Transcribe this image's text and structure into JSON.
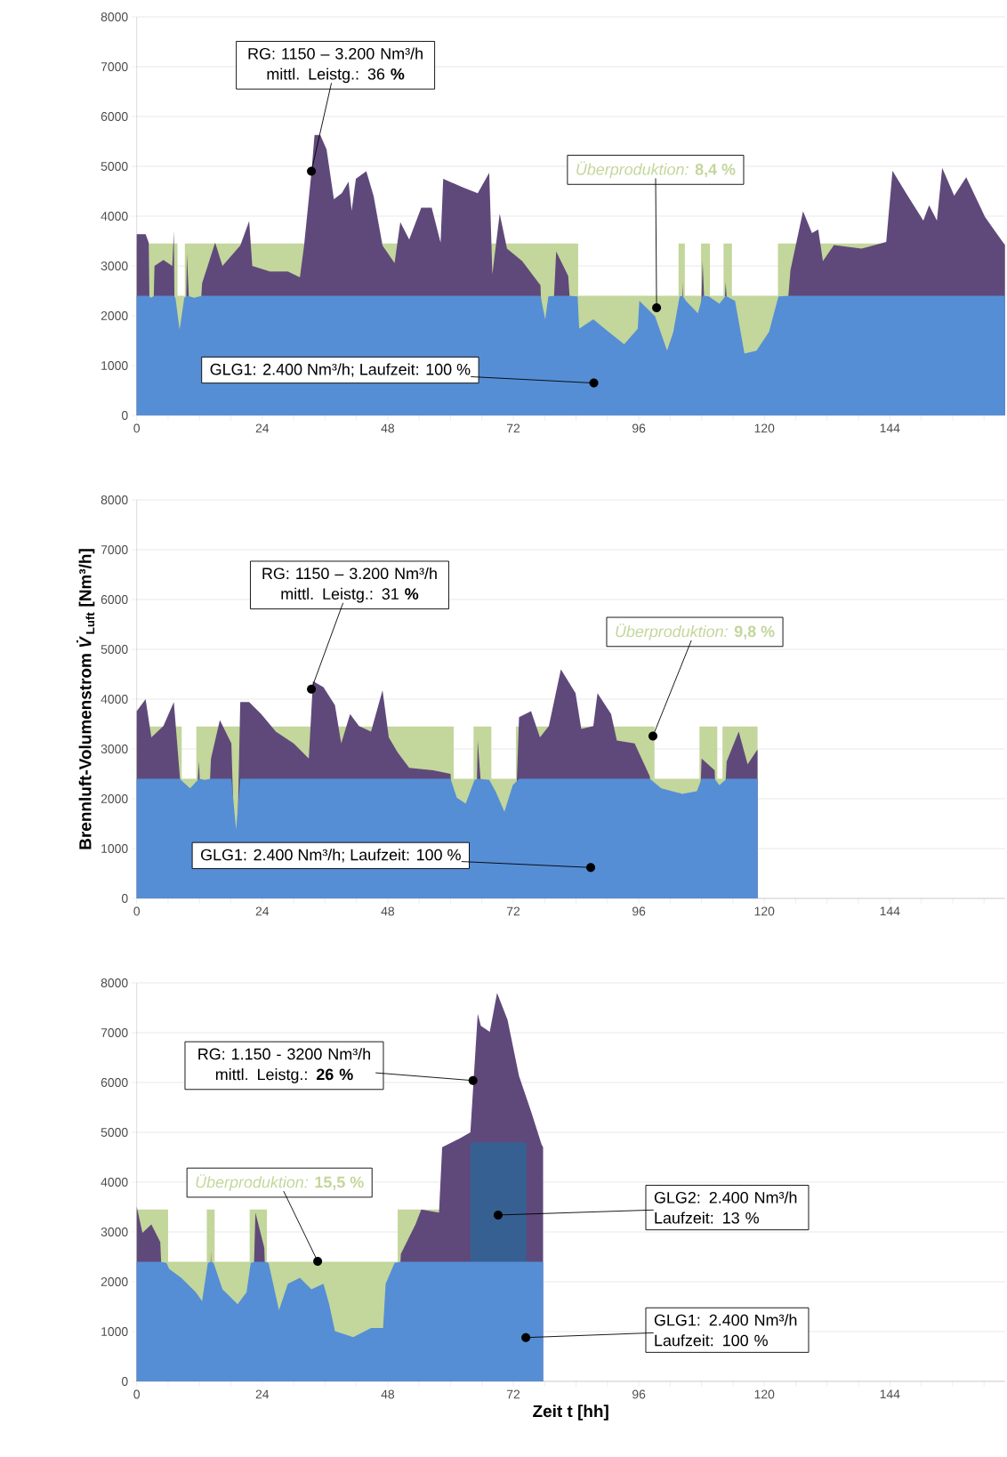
{
  "chart_data": [
    {
      "type": "area",
      "xlim": [
        0,
        166
      ],
      "ylim": [
        0,
        8000
      ],
      "grid": "y",
      "xticks": [
        0,
        {
          "value": 6,
          "label": null
        },
        {
          "value": 12,
          "label": null
        },
        {
          "value": 18,
          "label": null
        },
        24,
        {
          "value": 30,
          "label": null
        },
        {
          "value": 36,
          "label": null
        },
        {
          "value": 42,
          "label": null
        },
        48,
        {
          "value": 54,
          "label": null
        },
        {
          "value": 60,
          "label": null
        },
        {
          "value": 66,
          "label": null
        },
        72,
        {
          "value": 78,
          "label": null
        },
        {
          "value": 84,
          "label": null
        },
        {
          "value": 90,
          "label": null
        },
        96,
        {
          "value": 102,
          "label": null
        },
        {
          "value": 108,
          "label": null
        },
        {
          "value": 114,
          "label": null
        },
        120,
        {
          "value": 126,
          "label": null
        },
        {
          "value": 132,
          "label": null
        },
        {
          "value": 138,
          "label": null
        },
        144,
        {
          "value": 150,
          "label": null
        },
        {
          "value": 156,
          "label": null
        },
        {
          "value": 162,
          "label": null
        }
      ],
      "yticks": [
        0,
        1000,
        2000,
        3000,
        4000,
        5000,
        6000,
        7000,
        8000
      ],
      "series": [
        {
          "color": "#c3d69b",
          "x": [
            0,
            7.8,
            7.8,
            9.2,
            9.2,
            84.4,
            84.4,
            103.6,
            103.6,
            104.8,
            104.8,
            107.9,
            107.9,
            109.6,
            109.6,
            112.2,
            112.2,
            113.8,
            113.8,
            122.6,
            122.6,
            166
          ],
          "values": [
            3450,
            3450,
            2400,
            2400,
            3450,
            3450,
            2400,
            2400,
            3450,
            3450,
            2400,
            2400,
            3450,
            3450,
            2400,
            2400,
            3450,
            3450,
            2400,
            2400,
            3450,
            3450
          ]
        },
        {
          "color": "#5f497a",
          "x": [
            0,
            1.7,
            2.3,
            2.7,
            3.4,
            5.1,
            6.8,
            7.1,
            7.4,
            8.2,
            9.1,
            9.6,
            11.0,
            12.5,
            15.0,
            16.4,
            19.8,
            21.5,
            22.1,
            25.5,
            28.9,
            31.2,
            32.0,
            33.4,
            34.0,
            35.1,
            36.3,
            37.7,
            39.2,
            40.5,
            41.1,
            41.9,
            43.9,
            45.3,
            47.0,
            49.3,
            50.4,
            52.1,
            54.4,
            56.4,
            58.1,
            58.6,
            62.3,
            65.2,
            67.4,
            68.0,
            69.4,
            70.8,
            73.7,
            77.2,
            78.1,
            78.7,
            80.2,
            82.5,
            84.3,
            84.6,
            87.3,
            90.2,
            93.2,
            95.8,
            96.1,
            99.1,
            101.4,
            102.6,
            103.8,
            104.4,
            105.0,
            107.3,
            108.2,
            109.4,
            111.4,
            112.6,
            114.4,
            116.2,
            118.5,
            120.9,
            122.7,
            125.0,
            127.4,
            129.1,
            130.3,
            131.2,
            133.3,
            138.6,
            143.3,
            144.5,
            147.4,
            150.4,
            151.5,
            153.0,
            154.0,
            156.3,
            158.6,
            162.2,
            166
          ],
          "values": [
            3640,
            3640,
            3470,
            null,
            3000,
            3120,
            3000,
            3700,
            null,
            null,
            null,
            3240,
            null,
            2650,
            3470,
            3000,
            3410,
            3900,
            3000,
            2890,
            2890,
            2770,
            3410,
            4870,
            5630,
            5630,
            5340,
            4340,
            4460,
            4690,
            4110,
            4750,
            4900,
            4400,
            3410,
            3060,
            3880,
            3530,
            4170,
            4170,
            3470,
            4750,
            4580,
            4460,
            4870,
            2830,
            4050,
            3350,
            3100,
            2610,
            null,
            null,
            3290,
            2800,
            null,
            null,
            null,
            null,
            null,
            null,
            null,
            null,
            null,
            null,
            null,
            2670,
            null,
            null,
            3100,
            null,
            null,
            2670,
            null,
            null,
            null,
            null,
            null,
            2920,
            4100,
            3660,
            3730,
            3100,
            3420,
            3350,
            3480,
            4910,
            4410,
            3910,
            4220,
            3910,
            4970,
            4410,
            4780,
            3980,
            3420
          ]
        },
        {
          "color": "#558ed5",
          "x": [
            0,
            1.7,
            2.3,
            2.7,
            3.4,
            5.1,
            6.8,
            7.1,
            7.4,
            8.2,
            9.1,
            9.6,
            11.0,
            12.5,
            15.0,
            16.4,
            19.8,
            21.5,
            22.1,
            25.5,
            28.9,
            31.2,
            32.0,
            33.4,
            34.0,
            35.1,
            36.3,
            37.7,
            39.2,
            40.5,
            41.1,
            41.9,
            43.9,
            45.3,
            47.0,
            49.3,
            50.4,
            52.1,
            54.4,
            56.4,
            58.1,
            58.6,
            62.3,
            65.2,
            67.4,
            68.0,
            69.4,
            70.8,
            73.7,
            77.2,
            78.1,
            78.7,
            80.2,
            82.5,
            84.3,
            84.6,
            87.3,
            90.2,
            93.2,
            95.8,
            96.1,
            99.1,
            101.4,
            102.6,
            103.8,
            104.4,
            105.0,
            107.3,
            108.2,
            109.4,
            111.4,
            112.6,
            114.4,
            116.2,
            118.5,
            120.9,
            122.7,
            125.0,
            127.4,
            129.1,
            130.3,
            131.2,
            133.3,
            138.6,
            143.3,
            144.5,
            147.4,
            150.4,
            151.5,
            153.0,
            154.0,
            156.3,
            158.6,
            162.2,
            166
          ],
          "values": [
            2400,
            2400,
            2400,
            2360,
            2400,
            2400,
            2400,
            2400,
            2360,
            1720,
            2360,
            2400,
            2360,
            2400,
            2400,
            2400,
            2400,
            2400,
            2400,
            2400,
            2400,
            2400,
            2400,
            2400,
            2400,
            2400,
            2400,
            2400,
            2400,
            2400,
            2400,
            2400,
            2400,
            2400,
            2400,
            2400,
            2400,
            2400,
            2400,
            2400,
            2400,
            2400,
            2400,
            2400,
            2400,
            2400,
            2400,
            2400,
            2400,
            2400,
            1930,
            2390,
            2400,
            2400,
            2390,
            1740,
            1930,
            1680,
            1430,
            1740,
            2300,
            1990,
            1300,
            1680,
            2390,
            2400,
            2300,
            2050,
            2400,
            2390,
            2240,
            2400,
            2300,
            1240,
            1300,
            1680,
            2390,
            2400,
            2400,
            2400,
            2400,
            2400,
            2400,
            2400,
            2400,
            2400,
            2400,
            2400,
            2400,
            2400,
            2400,
            2400,
            2400,
            2400,
            2400
          ]
        }
      ],
      "annotations": [
        {
          "text": "RG: 1150 – 3.200 Nm³/h mittl. Leistg.: 36 **%**",
          "x": 33.4,
          "y": 4900
        },
        {
          "text": "GLG1:  2.400 Nm³/h; Laufzeit: 100 %",
          "x": 87.4,
          "y": 650
        },
        {
          "text": "*Überproduktion:* **8,4 %**",
          "x": 99.4,
          "y": 2160
        }
      ]
    },
    {
      "type": "area",
      "xlim": [
        0,
        166
      ],
      "ylim": [
        0,
        8000
      ],
      "grid": "y",
      "ylabel": "Brennluft-Volumenstrom *V̇*$_{Luft}$  [Nm³/h]",
      "xticks": [
        0,
        {
          "value": 6,
          "label": null
        },
        {
          "value": 12,
          "label": null
        },
        {
          "value": 18,
          "label": null
        },
        24,
        {
          "value": 30,
          "label": null
        },
        {
          "value": 36,
          "label": null
        },
        {
          "value": 42,
          "label": null
        },
        48,
        {
          "value": 54,
          "label": null
        },
        {
          "value": 60,
          "label": null
        },
        {
          "value": 66,
          "label": null
        },
        72,
        {
          "value": 78,
          "label": null
        },
        {
          "value": 84,
          "label": null
        },
        {
          "value": 90,
          "label": null
        },
        96,
        {
          "value": 102,
          "label": null
        },
        {
          "value": 108,
          "label": null
        },
        {
          "value": 114,
          "label": null
        },
        120,
        {
          "value": 126,
          "label": null
        },
        {
          "value": 132,
          "label": null
        },
        {
          "value": 138,
          "label": null
        },
        144,
        {
          "value": 150,
          "label": null
        },
        {
          "value": 156,
          "label": null
        },
        {
          "value": 162,
          "label": null
        }
      ],
      "yticks": [
        0,
        1000,
        2000,
        3000,
        4000,
        5000,
        6000,
        7000,
        8000
      ],
      "series": [
        {
          "color": "#c3d69b",
          "x": [
            0,
            8.6,
            8.6,
            11.4,
            11.4,
            60.6,
            60.6,
            64.4,
            64.4,
            67.8,
            67.8,
            72.5,
            72.5,
            99,
            99,
            107.6,
            107.6,
            111,
            111,
            112,
            112,
            118.7
          ],
          "values": [
            3450,
            3450,
            2400,
            2400,
            3450,
            3450,
            2400,
            2400,
            3450,
            3450,
            2400,
            2400,
            3450,
            3450,
            2400,
            2400,
            3450,
            3450,
            2400,
            2400,
            3450,
            3450
          ]
        },
        {
          "color": "#5f497a",
          "x": [
            0,
            1.7,
            2.8,
            5.1,
            7.1,
            8.2,
            10.2,
            11.9,
            13.0,
            14.2,
            15.9,
            18.1,
            19.0,
            19.8,
            21.5,
            23.8,
            26.6,
            30.0,
            32.9,
            33.7,
            35.7,
            37.9,
            39.1,
            40.8,
            42.5,
            44.8,
            47.0,
            48.2,
            49.9,
            52.1,
            56.7,
            60.0,
            61.2,
            62.9,
            64.6,
            65.2,
            67.4,
            68.6,
            70.3,
            71.9,
            73.1,
            75.4,
            77.1,
            78.8,
            81.1,
            83.9,
            85.0,
            87.3,
            88.1,
            90.7,
            91.8,
            95.2,
            98.1,
            100.3,
            104.3,
            107.1,
            108.0,
            110.5,
            111.4,
            112.8,
            115.1,
            116.8,
            118.7
          ],
          "values": [
            3760,
            4000,
            3230,
            3460,
            3940,
            2500,
            null,
            2750,
            null,
            2810,
            3580,
            3110,
            null,
            3940,
            3940,
            3700,
            3350,
            3110,
            2810,
            4360,
            4240,
            3880,
            3110,
            3700,
            3460,
            3350,
            4180,
            3230,
            2930,
            2620,
            2570,
            2500,
            null,
            null,
            null,
            3170,
            null,
            null,
            null,
            null,
            3640,
            3760,
            3230,
            3460,
            4600,
            4120,
            3400,
            3460,
            4120,
            3700,
            3170,
            3110,
            2450,
            null,
            null,
            null,
            2810,
            2570,
            null,
            2750,
            3350,
            2690,
            2990
          ]
        },
        {
          "color": "#558ed5",
          "x": [
            0,
            1.7,
            2.8,
            5.1,
            7.1,
            8.2,
            10.2,
            11.9,
            13.0,
            14.2,
            15.9,
            18.1,
            19.0,
            19.8,
            21.5,
            23.8,
            26.6,
            30.0,
            32.9,
            33.7,
            35.7,
            37.9,
            39.1,
            40.8,
            42.5,
            44.8,
            47.0,
            48.2,
            49.9,
            52.1,
            56.7,
            60.0,
            61.2,
            62.9,
            64.6,
            65.2,
            67.4,
            68.6,
            70.3,
            71.9,
            73.1,
            75.4,
            77.1,
            78.8,
            81.1,
            83.9,
            85.0,
            87.3,
            88.1,
            90.7,
            91.8,
            95.2,
            98.1,
            100.3,
            104.3,
            107.1,
            108.0,
            110.5,
            111.4,
            112.8,
            115.1,
            116.8,
            118.7
          ],
          "values": [
            2400,
            2400,
            2400,
            2400,
            2400,
            2400,
            2210,
            2400,
            2380,
            2400,
            2400,
            2400,
            1380,
            2400,
            2400,
            2400,
            2400,
            2400,
            2400,
            2400,
            2400,
            2400,
            2400,
            2400,
            2400,
            2400,
            2400,
            2400,
            2400,
            2400,
            2400,
            2400,
            2020,
            1900,
            2380,
            2400,
            2380,
            2150,
            1740,
            2270,
            2400,
            2400,
            2400,
            2400,
            2400,
            2400,
            2400,
            2400,
            2400,
            2400,
            2400,
            2400,
            2400,
            2210,
            2100,
            2150,
            2400,
            2400,
            2270,
            2400,
            2400,
            2400,
            2400
          ]
        }
      ],
      "annotations": [
        {
          "text": "RG: 1150 – 3.200 Nm³/h mittl. Leistg.: 31 **%**",
          "x": 33.4,
          "y": 4200
        },
        {
          "text": "*Überproduktion:* **9,8 %**",
          "x": 98.7,
          "y": 3260
        },
        {
          "text": "GLG1:  2.400 Nm³/h; Laufzeit: 100 %",
          "x": 86.8,
          "y": 620
        }
      ]
    },
    {
      "type": "area",
      "xlim": [
        0,
        166
      ],
      "ylim": [
        0,
        8000
      ],
      "grid": "y",
      "xlabel": "Zeit t [hh]",
      "xticks": [
        0,
        {
          "value": 6,
          "label": null
        },
        {
          "value": 12,
          "label": null
        },
        {
          "value": 18,
          "label": null
        },
        24,
        {
          "value": 30,
          "label": null
        },
        {
          "value": 36,
          "label": null
        },
        {
          "value": 42,
          "label": null
        },
        48,
        {
          "value": 54,
          "label": null
        },
        {
          "value": 60,
          "label": null
        },
        {
          "value": 66,
          "label": null
        },
        72,
        {
          "value": 78,
          "label": null
        },
        {
          "value": 84,
          "label": null
        },
        {
          "value": 90,
          "label": null
        },
        96,
        {
          "value": 102,
          "label": null
        },
        {
          "value": 108,
          "label": null
        },
        {
          "value": 114,
          "label": null
        },
        120,
        {
          "value": 126,
          "label": null
        },
        {
          "value": 132,
          "label": null
        },
        {
          "value": 138,
          "label": null
        },
        144,
        {
          "value": 150,
          "label": null
        },
        {
          "value": 156,
          "label": null
        },
        {
          "value": 162,
          "label": null
        }
      ],
      "yticks": [
        0,
        1000,
        2000,
        3000,
        4000,
        5000,
        6000,
        7000,
        8000
      ],
      "series": [
        {
          "color": "#c3d69b",
          "x": [
            0,
            6.0,
            6.0,
            13.4,
            13.4,
            14.9,
            14.9,
            21.6,
            21.6,
            24.9,
            24.9,
            49.9,
            49.9,
            58.2
          ],
          "values": [
            3450,
            3450,
            2400,
            2400,
            3450,
            3450,
            2400,
            2400,
            3450,
            3450,
            2400,
            2400,
            3450,
            3450
          ]
        },
        {
          "color": "#5f497a",
          "x": [
            0,
            1.1,
            2.8,
            4.5,
            5.7,
            6.2,
            8.5,
            11.3,
            12.5,
            13.6,
            14.2,
            14.7,
            16.4,
            19.3,
            21.0,
            21.8,
            22.7,
            24.4,
            25.2,
            27.2,
            28.9,
            31.2,
            33.4,
            35.7,
            36.8,
            37.9,
            41.4,
            44.8,
            47.1,
            47.6,
            49.3,
            50.5,
            53.3,
            54.4,
            57.8,
            58.4,
            61.8,
            63.8,
            65.2,
            65.8,
            67.5,
            68.9,
            70.9,
            73.1,
            75.4,
            77.4,
            77.7
          ],
          "values": [
            3510,
            2980,
            3150,
            2800,
            null,
            null,
            null,
            null,
            null,
            null,
            2620,
            null,
            null,
            null,
            null,
            null,
            3390,
            2680,
            null,
            null,
            null,
            null,
            null,
            null,
            null,
            null,
            null,
            null,
            null,
            null,
            null,
            2560,
            3150,
            3450,
            3390,
            4700,
            4880,
            5000,
            7380,
            7140,
            7020,
            7800,
            7260,
            6130,
            5420,
            4760,
            4700
          ]
        },
        {
          "color": "#376092",
          "x": [
            63.8,
            74.5
          ],
          "values": [
            4800,
            4800
          ]
        },
        {
          "color": "#558ed5",
          "x": [
            0,
            1.1,
            2.8,
            4.5,
            5.7,
            6.2,
            8.5,
            11.3,
            12.5,
            13.6,
            14.2,
            14.7,
            16.4,
            19.3,
            21.0,
            21.8,
            22.7,
            24.4,
            25.2,
            27.2,
            28.9,
            31.2,
            33.4,
            35.7,
            36.8,
            37.9,
            41.4,
            44.8,
            47.1,
            47.6,
            49.3,
            50.5,
            53.3,
            54.4,
            57.8,
            58.4,
            61.8,
            63.8,
            65.2,
            65.8,
            67.5,
            68.9,
            70.9,
            73.1,
            75.4,
            77.4,
            77.7
          ],
          "values": [
            2400,
            2400,
            2400,
            2400,
            2380,
            2260,
            2080,
            1790,
            1610,
            2380,
            2400,
            2380,
            1850,
            1550,
            1790,
            2380,
            2400,
            2400,
            2380,
            1430,
            1960,
            2080,
            1850,
            1960,
            1550,
            1010,
            890,
            1070,
            1070,
            1960,
            2380,
            2400,
            2400,
            2400,
            2400,
            2400,
            2400,
            2400,
            2400,
            2400,
            2400,
            2400,
            2400,
            2400,
            2400,
            2400,
            2400
          ]
        }
      ],
      "annotations": [
        {
          "text": "RG: 1.150 - 3200 Nm³/h mittl. Leistg.: **26 %**",
          "x": 64.3,
          "y": 6040
        },
        {
          "text": "*Überproduktion:* **15,5 %**",
          "x": 34.6,
          "y": 2410
        },
        {
          "text": "GLG2: 2.400 Nm³/h Laufzeit: 13 %",
          "x": 69.1,
          "y": 3340
        },
        {
          "text": "GLG1: 2.400 Nm³/h Laufzeit: 100 %",
          "x": 74.4,
          "y": 880
        }
      ]
    }
  ]
}
